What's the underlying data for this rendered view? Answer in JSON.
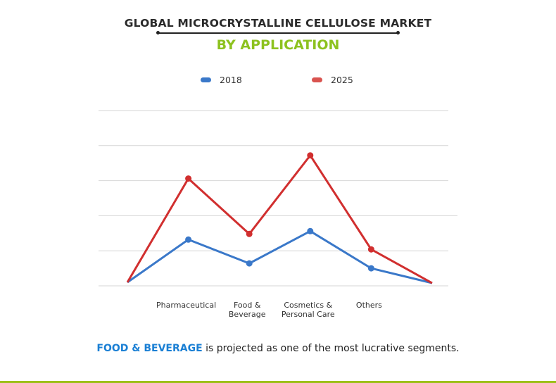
{
  "header": {
    "title": "GLOBAL MICROCRYSTALLINE CELLULOSE MARKET",
    "subtitle": "BY APPLICATION"
  },
  "footer": {
    "highlight": "FOOD & BEVERAGE",
    "text": " is projected as one of the most lucrative segments."
  },
  "colors": {
    "series_2018": "#3a78c9",
    "series_2025": "#d12f2f",
    "accent": "#8dc21f",
    "highlight": "#1a7fd4"
  },
  "chart_data": {
    "type": "line",
    "title": "GLOBAL MICROCRYSTALLINE CELLULOSE MARKET",
    "subtitle": "BY APPLICATION",
    "xlabel": "",
    "ylabel": "",
    "categories": [
      "",
      "Pharmaceutical",
      "Food & Beverage",
      "Cosmetics & Personal Care",
      "Others",
      ""
    ],
    "category_lines": [
      [],
      [
        "Pharmaceutical"
      ],
      [
        "Food &",
        "Beverage"
      ],
      [
        "Cosmetics &",
        "Personal Care"
      ],
      [
        "Others"
      ],
      []
    ],
    "series": [
      {
        "name": "2018",
        "color": "#3a78c9",
        "values": [
          0.1,
          1.32,
          0.64,
          1.56,
          0.5,
          0.08
        ],
        "markers": [
          false,
          true,
          true,
          true,
          true,
          false
        ]
      },
      {
        "name": "2025",
        "color": "#d12f2f",
        "values": [
          0.1,
          3.06,
          1.48,
          3.72,
          1.04,
          0.08
        ],
        "markers": [
          false,
          true,
          true,
          true,
          true,
          false
        ]
      }
    ],
    "ylim": [
      0,
      5
    ],
    "grid": true,
    "legend": "top-center",
    "y_units_note": "unlabeled axis; values in relative units"
  }
}
